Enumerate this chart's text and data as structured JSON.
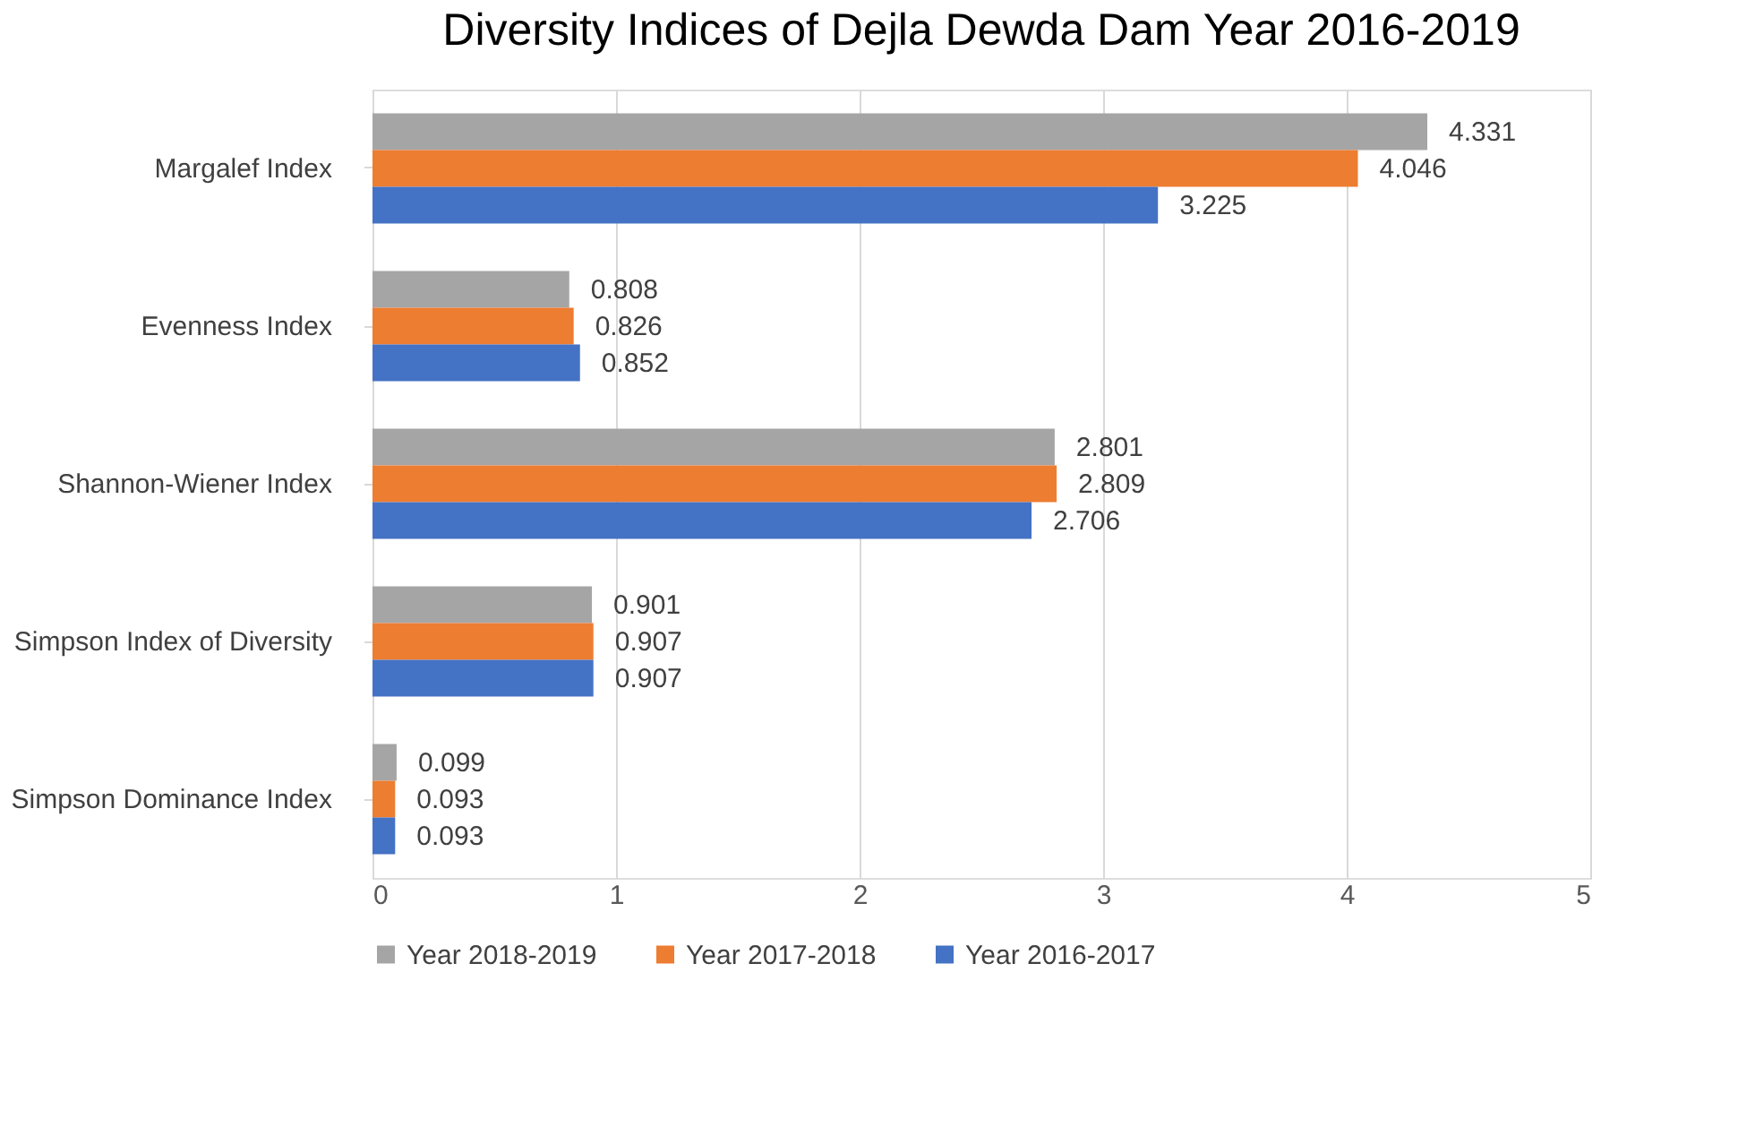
{
  "chart_data": {
    "type": "bar",
    "orientation": "horizontal",
    "title": "Diversity Indices of Dejla Dewda Dam Year 2016-2019",
    "categories": [
      "Margalef Index",
      "Evenness Index",
      "Shannon-Wiener Index",
      "Simpson Index of Diversity",
      "Simpson Dominance Index"
    ],
    "series": [
      {
        "name": "Year 2018-2019",
        "color": "#a5a5a5",
        "values": [
          4.331,
          0.808,
          2.801,
          0.901,
          0.099
        ]
      },
      {
        "name": "Year 2017-2018",
        "color": "#ed7d31",
        "values": [
          4.046,
          0.826,
          2.809,
          0.907,
          0.093
        ]
      },
      {
        "name": "Year 2016-2017",
        "color": "#4472c4",
        "values": [
          3.225,
          0.852,
          2.706,
          0.907,
          0.093
        ]
      }
    ],
    "xlim": [
      0,
      5
    ],
    "xticks": [
      0,
      1,
      2,
      3,
      4,
      5
    ],
    "grid": "x",
    "legend": "bottom",
    "data_labels": true
  }
}
